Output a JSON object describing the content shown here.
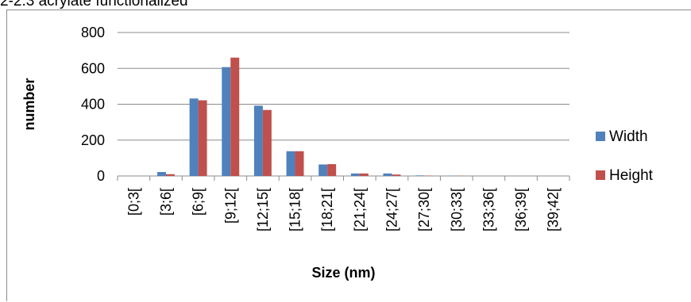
{
  "top_text": "2-2.3 acrylate functionalized",
  "chart_data": {
    "type": "bar",
    "categories": [
      "[0;3[",
      "[3;6[",
      "[6;9[",
      "[9;12[",
      "[12;15[",
      "[15;18[",
      "[18;21[",
      "[21;24[",
      "[24;27[",
      "[27;30[",
      "[30;33[",
      "[33;36[",
      "[36;39[",
      "[39;42["
    ],
    "series": [
      {
        "name": "Width",
        "color": "#4f81bd",
        "values": [
          0,
          22,
          432,
          607,
          392,
          138,
          64,
          14,
          14,
          3,
          1,
          0,
          0,
          0
        ]
      },
      {
        "name": "Height",
        "color": "#c0504d",
        "values": [
          0,
          10,
          422,
          660,
          368,
          138,
          66,
          14,
          8,
          2,
          1,
          0,
          0,
          0
        ]
      }
    ],
    "title": "",
    "xlabel": "Size (nm)",
    "ylabel": "number",
    "ylim": [
      0,
      800
    ],
    "yticks": [
      0,
      200,
      400,
      600,
      800
    ],
    "grid": true,
    "legend_position": "right"
  }
}
